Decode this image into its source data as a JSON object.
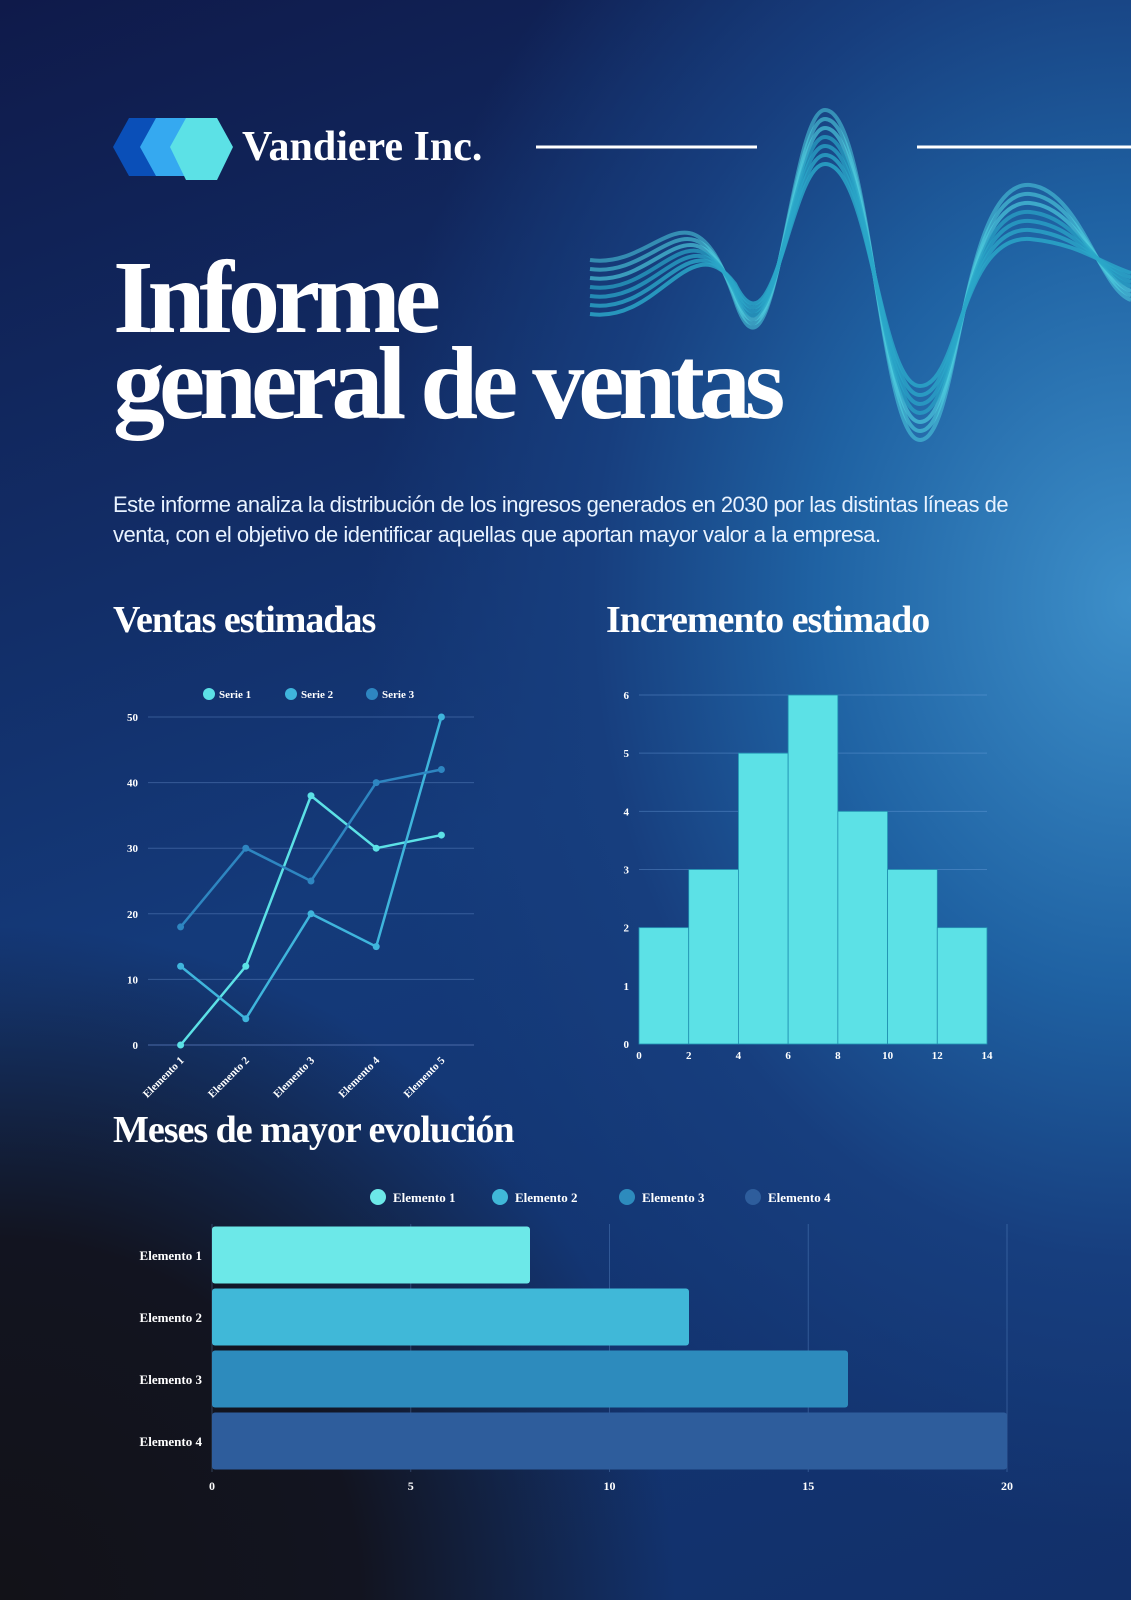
{
  "brand": "Vandiere Inc.",
  "title_lines": [
    "Informe",
    "general de ventas"
  ],
  "intro": "Este informe analiza la distribución de los ingresos generados en 2030 por las distintas líneas de venta, con el objetivo de identificar aquellas que aportan mayor valor a la empresa.",
  "chart_data": [
    {
      "type": "line",
      "title": "Ventas estimadas",
      "categories": [
        "Elemento 1",
        "Elemento 2",
        "Elemento 3",
        "Elemento 4",
        "Elemento 5"
      ],
      "series": [
        {
          "name": "Serie 1",
          "color": "#5ce1e6",
          "values": [
            0,
            12,
            38,
            30,
            32
          ]
        },
        {
          "name": "Serie 2",
          "color": "#3fb5dc",
          "values": [
            12,
            4,
            20,
            15,
            50
          ]
        },
        {
          "name": "Serie 3",
          "color": "#2e86c1",
          "values": [
            18,
            30,
            25,
            40,
            42
          ]
        }
      ],
      "ylim": [
        0,
        50
      ],
      "yticks": [
        0,
        10,
        20,
        30,
        40,
        50
      ],
      "grid": true,
      "legend": "top"
    },
    {
      "type": "histogram",
      "title": "Incremento estimado",
      "bins": [
        0,
        2,
        4,
        6,
        8,
        10,
        12,
        14
      ],
      "values": [
        2,
        3,
        5,
        6,
        4,
        3,
        2
      ],
      "color": "#5ce1e6",
      "xlim": [
        0,
        14
      ],
      "xticks": [
        0,
        2,
        4,
        6,
        8,
        10,
        12,
        14
      ],
      "ylim": [
        0,
        6
      ],
      "yticks": [
        0,
        1,
        2,
        3,
        4,
        5,
        6
      ],
      "grid": true
    },
    {
      "type": "hbar",
      "title": "Meses de mayor evolución",
      "categories": [
        "Elemento 1",
        "Elemento 2",
        "Elemento 3",
        "Elemento 4"
      ],
      "values": [
        8,
        12,
        16,
        20
      ],
      "colors": [
        "#6ce8e8",
        "#40b8d8",
        "#2d8bbd",
        "#2e5d9c"
      ],
      "xlim": [
        0,
        20
      ],
      "xticks": [
        0,
        5,
        10,
        15,
        20
      ],
      "grid": true,
      "legend": "top"
    }
  ]
}
